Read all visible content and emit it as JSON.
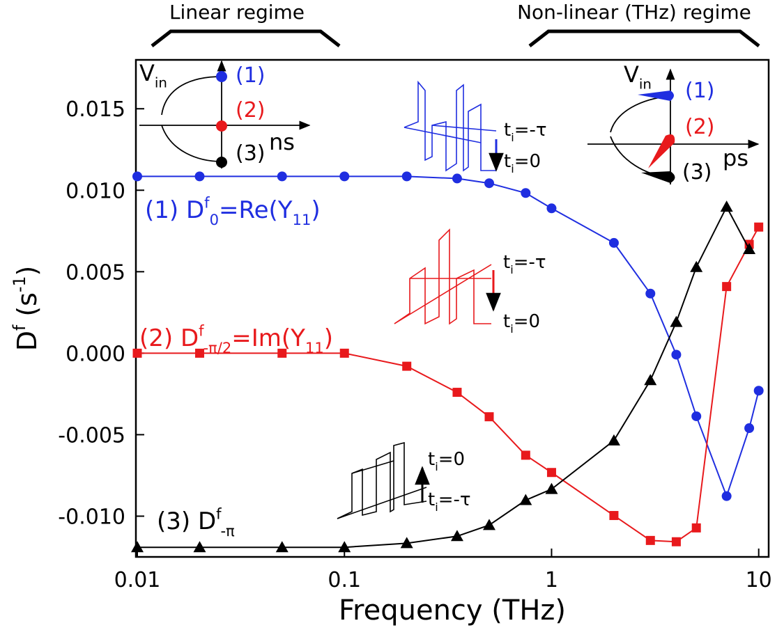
{
  "chart_data": {
    "type": "line",
    "x_label": "Frequency (THz)",
    "y_label": [
      {
        "text": "D"
      },
      {
        "text": "f",
        "shift": "sup"
      },
      {
        "text": " (s"
      },
      {
        "text": "-1",
        "shift": "sup"
      },
      {
        "text": ")"
      }
    ],
    "x_scale": "log",
    "xlim": [
      0.01,
      11
    ],
    "xticks": [
      0.01,
      0.1,
      1,
      10
    ],
    "ylim": [
      -0.0125,
      0.018
    ],
    "yticks": [
      {
        "value": -0.01,
        "label": "-0.010"
      },
      {
        "value": -0.005,
        "label": "-0.005"
      },
      {
        "value": 0,
        "label": "0.000"
      },
      {
        "value": 0.005,
        "label": "0.005"
      },
      {
        "value": 0.01,
        "label": "0.010"
      },
      {
        "value": 0.015,
        "label": "0.015"
      }
    ],
    "series": [
      {
        "color": "#1f2ee0",
        "marker": "circle",
        "x": [
          0.01,
          0.02,
          0.05,
          0.1,
          0.2,
          0.35,
          0.5,
          0.75,
          1,
          2,
          3,
          4,
          5,
          7,
          9,
          10
        ],
        "values": [
          0.01085,
          0.01085,
          0.01085,
          0.01085,
          0.01085,
          0.01072,
          0.01043,
          0.00983,
          0.00889,
          0.00677,
          0.00366,
          -9e-05,
          -0.00387,
          -0.00877,
          -0.0046,
          -0.0023
        ]
      },
      {
        "color": "#e8191c",
        "marker": "square",
        "x": [
          0.01,
          0.02,
          0.05,
          0.1,
          0.2,
          0.35,
          0.5,
          0.75,
          1,
          2,
          3,
          4,
          5,
          7,
          9,
          10
        ],
        "values": [
          0,
          0,
          0,
          0,
          -0.0008,
          -0.0024,
          -0.0039,
          -0.00626,
          -0.00732,
          -0.00996,
          -0.01149,
          -0.01157,
          -0.01072,
          0.00409,
          0.00668,
          0.00774
        ]
      },
      {
        "color": "#000000",
        "marker": "triangle",
        "x": [
          0.01,
          0.02,
          0.05,
          0.1,
          0.2,
          0.35,
          0.5,
          0.75,
          1,
          2,
          3,
          4,
          5,
          7,
          9
        ],
        "values": [
          -0.01191,
          -0.01191,
          -0.01191,
          -0.01191,
          -0.01166,
          -0.01123,
          -0.01055,
          -0.00902,
          -0.00834,
          -0.00536,
          -0.00166,
          0.00191,
          0.00528,
          0.00898,
          0.00638
        ]
      }
    ],
    "annotations": [
      {
        "color": "#000000",
        "parts": [
          {
            "text": "Linear regime"
          }
        ]
      },
      {
        "color": "#000000",
        "parts": [
          {
            "text": "Non-linear (THz) regime"
          }
        ]
      },
      {
        "color": "#1f2ee0",
        "parts": [
          {
            "text": "(1) D"
          },
          {
            "text": "f",
            "shift": "sup"
          },
          {
            "text": "0",
            "shift": "sub"
          },
          {
            "text": "=Re(Y"
          },
          {
            "text": "11",
            "shift": "sub"
          },
          {
            "text": ")"
          }
        ]
      },
      {
        "color": "#e8191c",
        "parts": [
          {
            "text": "(2) D"
          },
          {
            "text": "f",
            "shift": "sup"
          },
          {
            "text": "-π/2",
            "shift": "sub"
          },
          {
            "text": "=Im(Y"
          },
          {
            "text": "11",
            "shift": "sub"
          },
          {
            "text": ")"
          }
        ]
      },
      {
        "color": "#000000",
        "parts": [
          {
            "text": "(3) D"
          },
          {
            "text": "f",
            "shift": "sup"
          },
          {
            "text": "-π",
            "shift": "sub"
          }
        ]
      },
      {
        "color": "#000000",
        "parts": [
          {
            "text": "V"
          },
          {
            "text": "in",
            "shift": "sub"
          }
        ]
      },
      {
        "color": "#1f2ee0",
        "parts": [
          {
            "text": "(1)"
          }
        ]
      },
      {
        "color": "#e8191c",
        "parts": [
          {
            "text": "(2)"
          }
        ]
      },
      {
        "color": "#000000",
        "parts": [
          {
            "text": "(3)"
          }
        ]
      },
      {
        "color": "#000000",
        "parts": [
          {
            "text": "ns"
          }
        ]
      },
      {
        "color": "#000000",
        "parts": [
          {
            "text": "V"
          },
          {
            "text": "in",
            "shift": "sub"
          }
        ]
      },
      {
        "color": "#1f2ee0",
        "parts": [
          {
            "text": "(1)"
          }
        ]
      },
      {
        "color": "#e8191c",
        "parts": [
          {
            "text": "(2)"
          }
        ]
      },
      {
        "color": "#000000",
        "parts": [
          {
            "text": "(3)"
          }
        ]
      },
      {
        "color": "#000000",
        "parts": [
          {
            "text": "ps"
          }
        ]
      },
      {
        "color": "#000000",
        "parts": [
          {
            "text": "t"
          },
          {
            "text": "i",
            "shift": "sub"
          },
          {
            "text": "=-τ"
          }
        ]
      },
      {
        "color": "#000000",
        "parts": [
          {
            "text": "t"
          },
          {
            "text": "i",
            "shift": "sub"
          },
          {
            "text": "=0"
          }
        ]
      },
      {
        "color": "#000000",
        "parts": [
          {
            "text": "t"
          },
          {
            "text": "i",
            "shift": "sub"
          },
          {
            "text": "=-τ"
          }
        ]
      },
      {
        "color": "#000000",
        "parts": [
          {
            "text": "t"
          },
          {
            "text": "i",
            "shift": "sub"
          },
          {
            "text": "=0"
          }
        ]
      },
      {
        "color": "#000000",
        "parts": [
          {
            "text": "t"
          },
          {
            "text": "i",
            "shift": "sub"
          },
          {
            "text": "=0"
          }
        ]
      },
      {
        "color": "#000000",
        "parts": [
          {
            "text": "t"
          },
          {
            "text": "i",
            "shift": "sub"
          },
          {
            "text": "=-τ"
          }
        ]
      }
    ]
  }
}
